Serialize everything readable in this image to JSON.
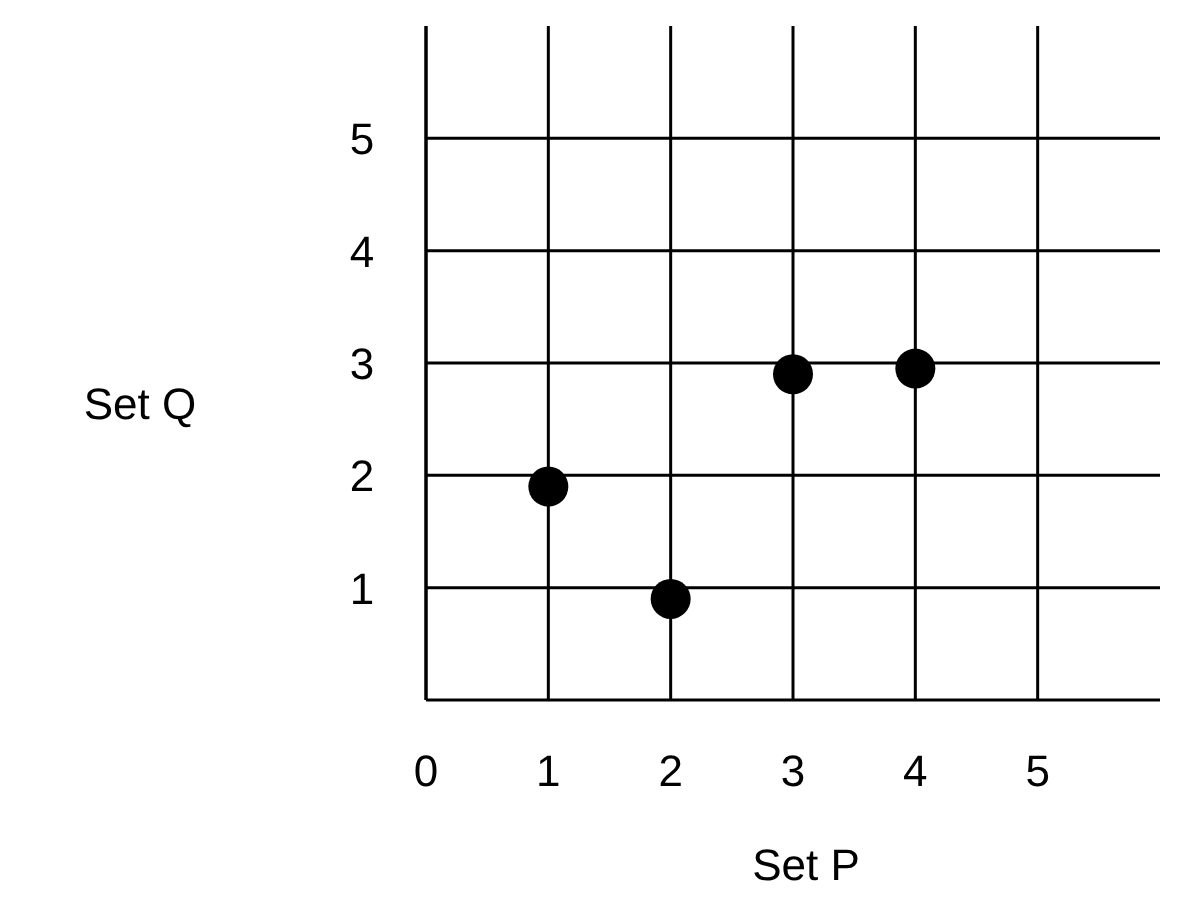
{
  "chart_data": {
    "type": "scatter",
    "xlabel": "Set P",
    "ylabel": "Set Q",
    "x": [
      1,
      2,
      3,
      4
    ],
    "values": [
      1.9,
      0.9,
      2.9,
      2.95
    ],
    "color": "#000000",
    "xlim": [
      0,
      6
    ],
    "ylim": [
      0,
      6
    ],
    "xticks": [
      0,
      1,
      2,
      3,
      4,
      5
    ],
    "yticks": [
      1,
      2,
      3,
      4,
      5
    ],
    "grid": true,
    "marker": "circle"
  }
}
